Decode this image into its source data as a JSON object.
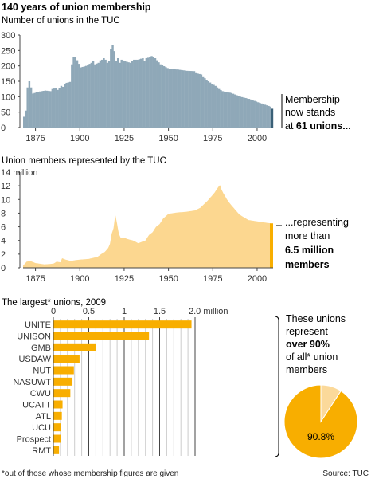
{
  "title": "140 years of union membership",
  "source": "Source: TUC",
  "footnote": "*out of those whose membership figures are given",
  "colors": {
    "blue": "#8fa8b8",
    "blue_dark": "#3a6077",
    "cream": "#fcd790",
    "orange": "#f8ae00",
    "pie_light": "#fbd99a",
    "axis": "#444444",
    "grid": "#cccccc"
  },
  "chart_data": [
    {
      "type": "bar",
      "title": "Number of unions in the TUC",
      "xlim": [
        1868,
        2009
      ],
      "ylim": [
        0,
        300
      ],
      "xticks": [
        1875,
        1900,
        1925,
        1950,
        1975,
        2000
      ],
      "yticks": [
        0,
        50,
        100,
        150,
        200,
        250,
        300
      ],
      "grid": false,
      "anchors_x": [
        1868,
        1869,
        1870,
        1871,
        1873,
        1874,
        1875,
        1880,
        1883,
        1884,
        1886,
        1887,
        1889,
        1890,
        1891,
        1892,
        1894,
        1895,
        1896,
        1897,
        1900,
        1903,
        1906,
        1907,
        1908,
        1910,
        1911,
        1912,
        1913,
        1914,
        1915,
        1916,
        1917,
        1918,
        1919,
        1920,
        1921,
        1922,
        1923,
        1925,
        1928,
        1930,
        1932,
        1935,
        1936,
        1937,
        1939,
        1940,
        1942,
        1945,
        1950,
        1955,
        1960,
        1964,
        1966,
        1968,
        1970,
        1972,
        1974,
        1976,
        1978,
        1980,
        1985,
        1990,
        1995,
        2000,
        2003,
        2005,
        2007,
        2008
      ],
      "anchors_y": [
        35,
        55,
        130,
        150,
        110,
        112,
        115,
        120,
        118,
        125,
        128,
        122,
        135,
        132,
        140,
        145,
        148,
        205,
        230,
        230,
        195,
        200,
        210,
        215,
        205,
        210,
        218,
        220,
        225,
        220,
        210,
        215,
        255,
        268,
        248,
        215,
        225,
        210,
        220,
        215,
        210,
        220,
        220,
        225,
        215,
        225,
        228,
        232,
        225,
        205,
        190,
        188,
        184,
        183,
        175,
        172,
        160,
        150,
        142,
        135,
        125,
        118,
        112,
        100,
        93,
        82,
        76,
        72,
        68,
        61
      ],
      "highlight": {
        "year": 2008,
        "value": 61
      },
      "annotation": {
        "lines": [
          "Membership",
          "now stands"
        ],
        "last_prefix": "at ",
        "last_bold": "61 unions..."
      }
    },
    {
      "type": "area",
      "title": "Union members represented by the TUC",
      "y_unit": "million",
      "xlim": [
        1868,
        2009
      ],
      "ylim": [
        0,
        14
      ],
      "xticks": [
        1875,
        1900,
        1925,
        1950,
        1975,
        2000
      ],
      "yticks": [
        0,
        2,
        4,
        6,
        8,
        10,
        12,
        14
      ],
      "grid": false,
      "anchors_x": [
        1868,
        1870,
        1872,
        1875,
        1880,
        1885,
        1887,
        1889,
        1890,
        1892,
        1895,
        1897,
        1900,
        1905,
        1910,
        1912,
        1914,
        1916,
        1917,
        1918,
        1919,
        1920,
        1921,
        1922,
        1923,
        1925,
        1927,
        1930,
        1933,
        1935,
        1937,
        1939,
        1941,
        1943,
        1945,
        1947,
        1950,
        1955,
        1960,
        1965,
        1968,
        1970,
        1972,
        1974,
        1976,
        1978,
        1979,
        1980,
        1981,
        1983,
        1985,
        1988,
        1990,
        1995,
        2000,
        2005,
        2008
      ],
      "anchors_y": [
        0.3,
        0.9,
        1.0,
        0.7,
        0.5,
        0.6,
        0.9,
        0.8,
        1.4,
        1.2,
        1.0,
        1.1,
        1.2,
        1.3,
        1.6,
        2.0,
        2.3,
        2.9,
        3.5,
        5.0,
        5.8,
        7.8,
        6.5,
        5.0,
        4.4,
        4.4,
        4.2,
        4.0,
        3.6,
        3.8,
        4.0,
        4.8,
        5.2,
        6.0,
        6.4,
        7.2,
        7.9,
        8.1,
        8.2,
        8.4,
        8.8,
        9.3,
        9.8,
        10.4,
        11.0,
        11.8,
        12.1,
        11.4,
        10.9,
        10.0,
        9.3,
        8.4,
        7.8,
        7.0,
        6.8,
        6.6,
        6.5
      ],
      "annotation": {
        "lines": [
          "...representing",
          "more than"
        ],
        "bold_lines": [
          "6.5 million",
          "members"
        ]
      }
    },
    {
      "type": "bar",
      "title": "The largest* unions, 2009",
      "x_unit": "2.0 million",
      "xlim": [
        0,
        2.0
      ],
      "xticks": [
        0,
        0.5,
        1,
        1.5,
        2.0
      ],
      "xtick_labels": [
        "0",
        "0.5",
        "1",
        "1.5",
        ""
      ],
      "grid": true,
      "categories": [
        "UNITE",
        "UNISON",
        "GMB",
        "USDAW",
        "NUT",
        "NASUWT",
        "CWU",
        "UCATT",
        "ATL",
        "UCU",
        "Prospect",
        "RMT"
      ],
      "values": [
        1.95,
        1.35,
        0.6,
        0.37,
        0.29,
        0.27,
        0.24,
        0.13,
        0.12,
        0.11,
        0.11,
        0.08
      ],
      "annotation": {
        "lines": [
          "These unions",
          "represent"
        ],
        "bold_line": "over 90%",
        "lines_after": [
          "of all* union",
          "members"
        ]
      }
    },
    {
      "type": "pie",
      "values": [
        90.8,
        9.2
      ],
      "colors": [
        "#f8ae00",
        "#fbd99a"
      ],
      "label": "90.8%"
    }
  ]
}
